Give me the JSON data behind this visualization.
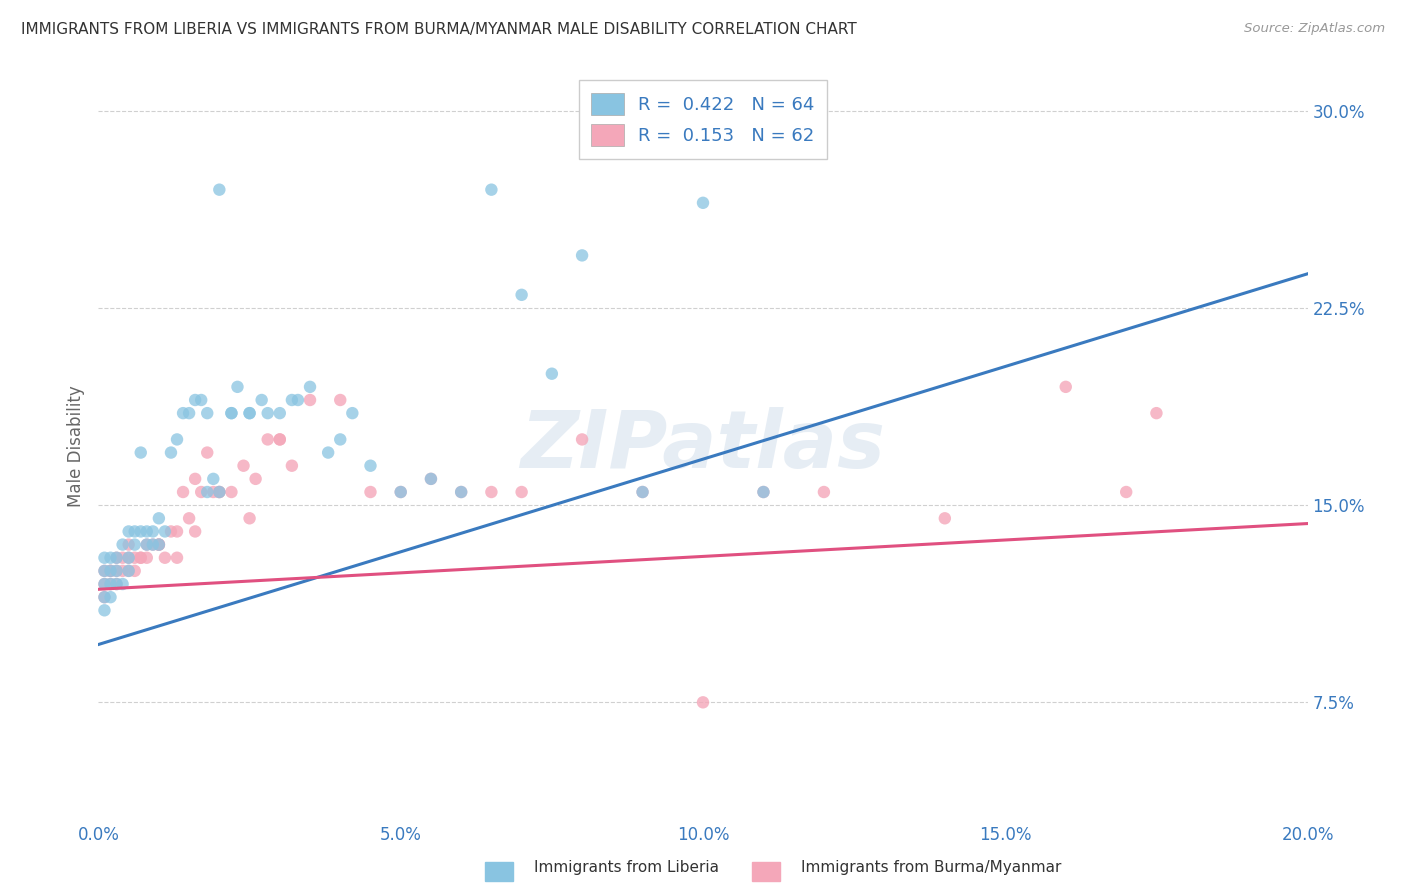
{
  "title": "IMMIGRANTS FROM LIBERIA VS IMMIGRANTS FROM BURMA/MYANMAR MALE DISABILITY CORRELATION CHART",
  "source": "Source: ZipAtlas.com",
  "ylabel": "Male Disability",
  "legend_label_1": "Immigrants from Liberia",
  "legend_label_2": "Immigrants from Burma/Myanmar",
  "R1": 0.422,
  "N1": 64,
  "R2": 0.153,
  "N2": 62,
  "xlim": [
    0.0,
    0.2
  ],
  "ylim": [
    0.03,
    0.315
  ],
  "xticks": [
    0.0,
    0.05,
    0.1,
    0.15,
    0.2
  ],
  "xtick_labels": [
    "0.0%",
    "5.0%",
    "10.0%",
    "15.0%",
    "20.0%"
  ],
  "yticks": [
    0.075,
    0.15,
    0.225,
    0.3
  ],
  "ytick_labels": [
    "7.5%",
    "15.0%",
    "22.5%",
    "30.0%"
  ],
  "color_blue": "#89c4e1",
  "color_pink": "#f4a7b9",
  "color_line_blue": "#3a7abf",
  "color_line_pink": "#e05080",
  "color_text_blue": "#3a7abf",
  "background_color": "#ffffff",
  "grid_color": "#d0d0d0",
  "watermark_text": "ZIPatlas",
  "trend_blue_x0": 0.0,
  "trend_blue_y0": 0.097,
  "trend_blue_x1": 0.2,
  "trend_blue_y1": 0.238,
  "trend_pink_x0": 0.0,
  "trend_pink_y0": 0.118,
  "trend_pink_x1": 0.2,
  "trend_pink_y1": 0.143,
  "scatter_liberia_x": [
    0.001,
    0.001,
    0.001,
    0.001,
    0.001,
    0.002,
    0.002,
    0.002,
    0.002,
    0.003,
    0.003,
    0.003,
    0.004,
    0.004,
    0.005,
    0.005,
    0.005,
    0.006,
    0.006,
    0.007,
    0.007,
    0.008,
    0.008,
    0.009,
    0.009,
    0.01,
    0.01,
    0.011,
    0.012,
    0.013,
    0.014,
    0.015,
    0.016,
    0.017,
    0.018,
    0.019,
    0.02,
    0.022,
    0.023,
    0.025,
    0.027,
    0.028,
    0.03,
    0.032,
    0.033,
    0.035,
    0.038,
    0.04,
    0.042,
    0.045,
    0.05,
    0.055,
    0.06,
    0.065,
    0.07,
    0.075,
    0.08,
    0.09,
    0.1,
    0.11,
    0.02,
    0.025,
    0.018,
    0.022
  ],
  "scatter_liberia_y": [
    0.125,
    0.13,
    0.12,
    0.115,
    0.11,
    0.125,
    0.13,
    0.12,
    0.115,
    0.13,
    0.125,
    0.12,
    0.135,
    0.12,
    0.14,
    0.13,
    0.125,
    0.14,
    0.135,
    0.14,
    0.17,
    0.14,
    0.135,
    0.14,
    0.135,
    0.145,
    0.135,
    0.14,
    0.17,
    0.175,
    0.185,
    0.185,
    0.19,
    0.19,
    0.155,
    0.16,
    0.155,
    0.185,
    0.195,
    0.185,
    0.19,
    0.185,
    0.185,
    0.19,
    0.19,
    0.195,
    0.17,
    0.175,
    0.185,
    0.165,
    0.155,
    0.16,
    0.155,
    0.27,
    0.23,
    0.2,
    0.245,
    0.155,
    0.265,
    0.155,
    0.27,
    0.185,
    0.185,
    0.185
  ],
  "scatter_burma_x": [
    0.001,
    0.001,
    0.001,
    0.002,
    0.002,
    0.003,
    0.003,
    0.004,
    0.004,
    0.005,
    0.005,
    0.006,
    0.006,
    0.007,
    0.007,
    0.008,
    0.009,
    0.01,
    0.01,
    0.011,
    0.012,
    0.013,
    0.014,
    0.015,
    0.016,
    0.017,
    0.018,
    0.019,
    0.02,
    0.022,
    0.024,
    0.026,
    0.028,
    0.03,
    0.032,
    0.035,
    0.04,
    0.045,
    0.05,
    0.055,
    0.06,
    0.065,
    0.07,
    0.08,
    0.09,
    0.1,
    0.11,
    0.12,
    0.14,
    0.16,
    0.17,
    0.175,
    0.002,
    0.003,
    0.005,
    0.008,
    0.01,
    0.013,
    0.016,
    0.02,
    0.025,
    0.03
  ],
  "scatter_burma_y": [
    0.12,
    0.115,
    0.125,
    0.12,
    0.125,
    0.125,
    0.12,
    0.13,
    0.125,
    0.13,
    0.125,
    0.13,
    0.125,
    0.13,
    0.13,
    0.135,
    0.135,
    0.135,
    0.135,
    0.13,
    0.14,
    0.14,
    0.155,
    0.145,
    0.16,
    0.155,
    0.17,
    0.155,
    0.155,
    0.155,
    0.165,
    0.16,
    0.175,
    0.175,
    0.165,
    0.19,
    0.19,
    0.155,
    0.155,
    0.16,
    0.155,
    0.155,
    0.155,
    0.175,
    0.155,
    0.075,
    0.155,
    0.155,
    0.145,
    0.195,
    0.155,
    0.185,
    0.125,
    0.13,
    0.135,
    0.13,
    0.135,
    0.13,
    0.14,
    0.155,
    0.145,
    0.175
  ]
}
